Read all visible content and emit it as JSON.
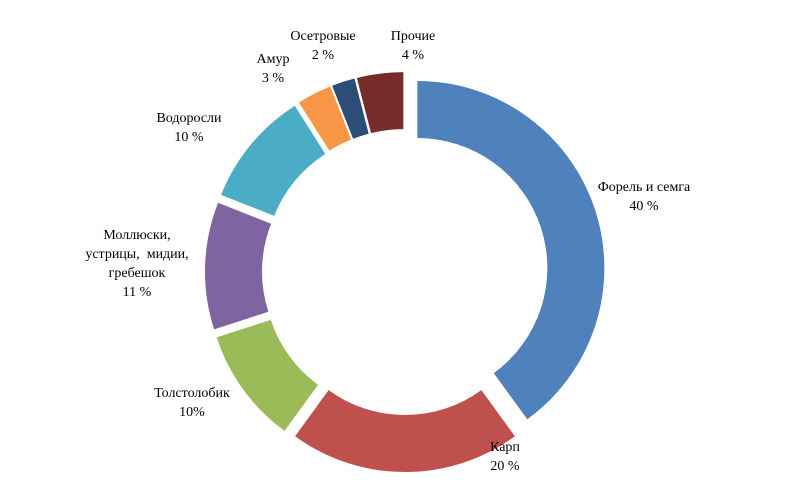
{
  "chart_data": {
    "type": "pie",
    "style": "exploded donut",
    "title": "",
    "legend": "none",
    "slices": [
      {
        "lines": [
          "Форель и семга",
          "40 %"
        ],
        "value": 40,
        "color": "#4F81BD"
      },
      {
        "lines": [
          "Карп",
          "20 %"
        ],
        "value": 20,
        "color": "#C0504D"
      },
      {
        "lines": [
          "Толстолобик",
          "10%"
        ],
        "value": 10,
        "color": "#9BBB59"
      },
      {
        "lines": [
          "Моллюски,",
          "устрицы,  мидии,",
          "гребешок",
          "11 %"
        ],
        "value": 11,
        "color": "#8064A2"
      },
      {
        "lines": [
          "Водоросли",
          "10 %"
        ],
        "value": 10,
        "color": "#4BACC6"
      },
      {
        "lines": [
          "Амур",
          "3 %"
        ],
        "value": 3,
        "color": "#F79646"
      },
      {
        "lines": [
          "Осетровые",
          "2 %"
        ],
        "value": 2,
        "color": "#2C4D75"
      },
      {
        "lines": [
          "Прочие",
          "4 %"
        ],
        "value": 4,
        "color": "#772C2A"
      }
    ]
  }
}
